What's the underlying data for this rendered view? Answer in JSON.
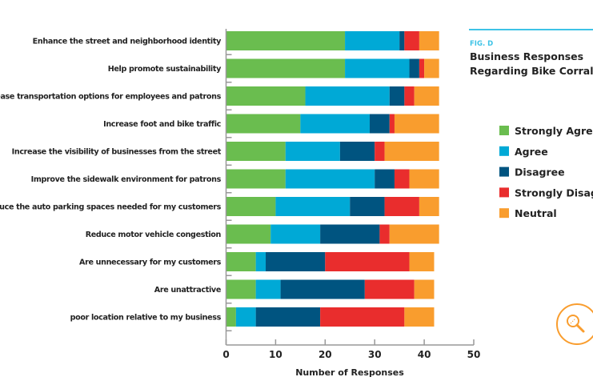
{
  "figure": {
    "label": "FIG. D",
    "title_line1": "Business Responses",
    "title_line2": "Regarding Bike Corral",
    "accent_color": "#3ec3e6",
    "icon": "magnifier-icon"
  },
  "chart_data": {
    "type": "bar",
    "orientation": "horizontal",
    "stacked": true,
    "title": "Business Responses Regarding Bike Corral",
    "xlabel": "Number of Responses",
    "ylabel": "",
    "xlim": [
      0,
      50
    ],
    "xticks": [
      0,
      10,
      20,
      30,
      40,
      50
    ],
    "grid": false,
    "legend_position": "right",
    "categories": [
      "Enhance the street and neighborhood identity",
      "Help promote sustainability",
      "ease transportation options for employees and patrons",
      "Increase foot and bike traffic",
      "Increase the visibility of businesses from the street",
      "Improve the sidewalk environment for patrons",
      "educe the auto parking spaces needed for my customers",
      "Reduce motor vehicle congestion",
      "Are unnecessary for my customers",
      "Are unattractive",
      "poor location relative to my business"
    ],
    "series": [
      {
        "name": "Strongly Agree",
        "color": "#6abd4f",
        "values": [
          24,
          24,
          16,
          15,
          12,
          12,
          10,
          9,
          6,
          6,
          2
        ]
      },
      {
        "name": "Agree",
        "color": "#00a9d6",
        "values": [
          11,
          13,
          17,
          14,
          11,
          18,
          15,
          10,
          2,
          5,
          4
        ]
      },
      {
        "name": "Disagree",
        "color": "#005480",
        "values": [
          1,
          2,
          3,
          4,
          7,
          4,
          7,
          12,
          12,
          17,
          13
        ]
      },
      {
        "name": "Strongly Disagree",
        "color": "#e92d2d",
        "values": [
          3,
          1,
          2,
          1,
          2,
          3,
          7,
          2,
          17,
          10,
          17
        ]
      },
      {
        "name": "Neutral",
        "color": "#f99d2e",
        "values": [
          4,
          3,
          5,
          9,
          11,
          6,
          4,
          10,
          5,
          4,
          6
        ]
      }
    ]
  }
}
